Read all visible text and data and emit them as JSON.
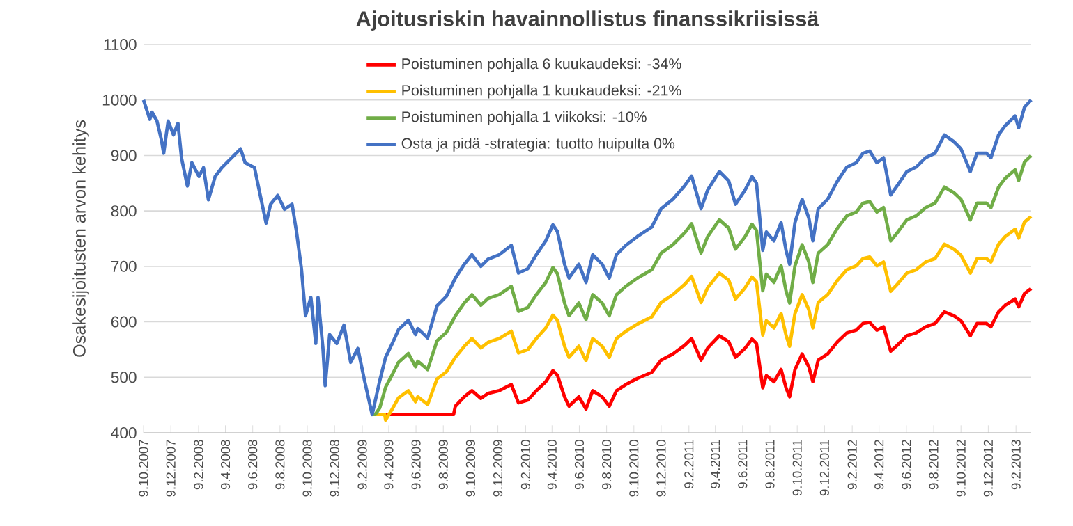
{
  "chart_data": {
    "type": "line",
    "title": "Ajoitusriskin havainnollistus finanssikriisissä",
    "ylabel": "Osakesijoitusten arvon kehitys",
    "xlim": [
      "2007-10-09",
      "2013-03-15"
    ],
    "ylim": [
      400,
      1100
    ],
    "yticks": [
      400,
      500,
      600,
      700,
      800,
      900,
      1000,
      1100
    ],
    "xticks": [
      {
        "value": "2007-10-09",
        "label": "9.10.2007"
      },
      {
        "value": "2007-12-09",
        "label": "9.12.2007"
      },
      {
        "value": "2008-02-09",
        "label": "9.2.2008"
      },
      {
        "value": "2008-04-09",
        "label": "9.4.2008"
      },
      {
        "value": "2008-06-09",
        "label": "9.6.2008"
      },
      {
        "value": "2008-08-09",
        "label": "9.8.2008"
      },
      {
        "value": "2008-10-09",
        "label": "9.10.2008"
      },
      {
        "value": "2008-12-09",
        "label": "9.12.2008"
      },
      {
        "value": "2009-02-09",
        "label": "9.2.2009"
      },
      {
        "value": "2009-04-09",
        "label": "9.4.2009"
      },
      {
        "value": "2009-06-09",
        "label": "9.6.2009"
      },
      {
        "value": "2009-08-09",
        "label": "9.8.2009"
      },
      {
        "value": "2009-10-09",
        "label": "9.10.2009"
      },
      {
        "value": "2009-12-09",
        "label": "9.12.2009"
      },
      {
        "value": "2010-02-09",
        "label": "9.2.2010"
      },
      {
        "value": "2010-04-09",
        "label": "9.4.2010"
      },
      {
        "value": "2010-06-09",
        "label": "9.6.2010"
      },
      {
        "value": "2010-08-09",
        "label": "9.8.2010"
      },
      {
        "value": "2010-10-09",
        "label": "9.10.2010"
      },
      {
        "value": "2010-12-09",
        "label": "9.12.2010"
      },
      {
        "value": "2011-02-09",
        "label": "9.2.2011"
      },
      {
        "value": "2011-04-09",
        "label": "9.4.2011"
      },
      {
        "value": "2011-06-09",
        "label": "9.6.2011"
      },
      {
        "value": "2011-08-09",
        "label": "9.8.2011"
      },
      {
        "value": "2011-10-09",
        "label": "9.10.2011"
      },
      {
        "value": "2011-12-09",
        "label": "9.12.2011"
      },
      {
        "value": "2012-02-09",
        "label": "9.2.2012"
      },
      {
        "value": "2012-04-09",
        "label": "9.4.2012"
      },
      {
        "value": "2012-06-09",
        "label": "9.6.2012"
      },
      {
        "value": "2012-08-09",
        "label": "9.8.2012"
      },
      {
        "value": "2012-10-09",
        "label": "9.10.2012"
      },
      {
        "value": "2012-12-09",
        "label": "9.12.2012"
      },
      {
        "value": "2013-02-09",
        "label": "9.2.2013"
      }
    ],
    "grid": "y",
    "legend": "top",
    "series": [
      {
        "name": "Poistuminen pohjalla 6 kuukaudeksi: -34%",
        "color": "#ff0000",
        "x": [
          "2009-04-02",
          "2009-09-01",
          "2009-09-05",
          "2009-09-25",
          "2009-10-12",
          "2009-11-01",
          "2009-11-17",
          "2009-12-12",
          "2010-01-08",
          "2010-01-24",
          "2010-02-14",
          "2010-03-05",
          "2010-03-26",
          "2010-04-11",
          "2010-04-21",
          "2010-05-07",
          "2010-05-17",
          "2010-06-08",
          "2010-06-24",
          "2010-07-09",
          "2010-07-30",
          "2010-08-15",
          "2010-08-31",
          "2010-09-21",
          "2010-10-17",
          "2010-11-18",
          "2010-12-09",
          "2011-01-04",
          "2011-01-31",
          "2011-02-15",
          "2011-03-08",
          "2011-03-23",
          "2011-04-18",
          "2011-05-09",
          "2011-05-24",
          "2011-06-14",
          "2011-06-30",
          "2011-07-10",
          "2011-07-24",
          "2011-08-01",
          "2011-08-18",
          "2011-09-03",
          "2011-09-14",
          "2011-09-22",
          "2011-10-04",
          "2011-10-20",
          "2011-11-04",
          "2011-11-13",
          "2011-11-25",
          "2011-12-16",
          "2012-01-07",
          "2012-01-28",
          "2012-02-18",
          "2012-03-04",
          "2012-03-19",
          "2012-04-04",
          "2012-04-19",
          "2012-05-05",
          "2012-05-20",
          "2012-06-10",
          "2012-07-01",
          "2012-07-22",
          "2012-08-12",
          "2012-09-02",
          "2012-09-23",
          "2012-10-09",
          "2012-10-30",
          "2012-11-14",
          "2012-12-05",
          "2012-12-15",
          "2013-01-01",
          "2013-01-16",
          "2013-02-07",
          "2013-02-15",
          "2013-02-28",
          "2013-03-15"
        ],
        "values": [
          433,
          433,
          448,
          465,
          476,
          462,
          471,
          476,
          487,
          454,
          459,
          476,
          492,
          512,
          504,
          465,
          448,
          465,
          443,
          476,
          465,
          448,
          476,
          487,
          498,
          509,
          531,
          542,
          558,
          570,
          531,
          553,
          575,
          564,
          536,
          552,
          569,
          561,
          481,
          503,
          492,
          514,
          481,
          465,
          514,
          542,
          519,
          492,
          531,
          542,
          564,
          580,
          585,
          597,
          599,
          585,
          591,
          547,
          558,
          575,
          580,
          591,
          597,
          618,
          611,
          602,
          575,
          597,
          597,
          591,
          618,
          630,
          641,
          627,
          651,
          660
        ]
      },
      {
        "name": "Poistuminen pohjalla 1 kuukaudeksi: -21%",
        "color": "#ffc000",
        "x": [
          "2009-03-03",
          "2009-03-31",
          "2009-04-02",
          "2009-04-17",
          "2009-05-01",
          "2009-05-23",
          "2009-06-08",
          "2009-06-13",
          "2009-07-05",
          "2009-07-26",
          "2009-08-16",
          "2009-09-05",
          "2009-09-25",
          "2009-10-12",
          "2009-11-01",
          "2009-11-17",
          "2009-12-12",
          "2010-01-08",
          "2010-01-24",
          "2010-02-14",
          "2010-03-05",
          "2010-03-26",
          "2010-04-11",
          "2010-04-21",
          "2010-05-07",
          "2010-05-17",
          "2010-06-08",
          "2010-06-24",
          "2010-07-09",
          "2010-07-30",
          "2010-08-15",
          "2010-08-31",
          "2010-09-21",
          "2010-10-17",
          "2010-11-18",
          "2010-12-09",
          "2011-01-04",
          "2011-01-31",
          "2011-02-15",
          "2011-03-08",
          "2011-03-23",
          "2011-04-18",
          "2011-05-09",
          "2011-05-24",
          "2011-06-14",
          "2011-06-30",
          "2011-07-10",
          "2011-07-24",
          "2011-08-01",
          "2011-08-18",
          "2011-09-03",
          "2011-09-14",
          "2011-09-22",
          "2011-10-04",
          "2011-10-20",
          "2011-11-04",
          "2011-11-13",
          "2011-11-25",
          "2011-12-16",
          "2012-01-07",
          "2012-01-28",
          "2012-02-18",
          "2012-03-04",
          "2012-03-19",
          "2012-04-04",
          "2012-04-19",
          "2012-05-05",
          "2012-05-20",
          "2012-06-10",
          "2012-07-01",
          "2012-07-22",
          "2012-08-12",
          "2012-09-02",
          "2012-09-23",
          "2012-10-09",
          "2012-10-30",
          "2012-11-14",
          "2012-12-05",
          "2012-12-15",
          "2013-01-01",
          "2013-01-16",
          "2013-02-07",
          "2013-02-15",
          "2013-02-28",
          "2013-03-15"
        ],
        "values": [
          433,
          433,
          423,
          443,
          463,
          476,
          456,
          465,
          451,
          497,
          510,
          536,
          556,
          570,
          553,
          563,
          570,
          583,
          544,
          550,
          570,
          589,
          612,
          603,
          556,
          536,
          556,
          530,
          570,
          556,
          536,
          570,
          583,
          596,
          609,
          635,
          649,
          668,
          682,
          635,
          662,
          688,
          675,
          641,
          661,
          681,
          672,
          576,
          602,
          589,
          615,
          576,
          556,
          615,
          649,
          622,
          589,
          635,
          649,
          675,
          694,
          701,
          714,
          717,
          701,
          708,
          655,
          668,
          688,
          694,
          708,
          714,
          740,
          731,
          720,
          688,
          714,
          714,
          708,
          740,
          754,
          767,
          751,
          780,
          790
        ]
      },
      {
        "name": "Poistuminen pohjalla 1 viikoksi: -10%",
        "color": "#70ad47",
        "x": [
          "2009-03-03",
          "2009-03-10",
          "2009-03-20",
          "2009-04-02",
          "2009-04-17",
          "2009-05-01",
          "2009-05-23",
          "2009-06-08",
          "2009-06-13",
          "2009-07-05",
          "2009-07-26",
          "2009-08-16",
          "2009-09-05",
          "2009-09-25",
          "2009-10-12",
          "2009-11-01",
          "2009-11-17",
          "2009-12-12",
          "2010-01-08",
          "2010-01-24",
          "2010-02-14",
          "2010-03-05",
          "2010-03-26",
          "2010-04-11",
          "2010-04-21",
          "2010-05-07",
          "2010-05-17",
          "2010-06-08",
          "2010-06-24",
          "2010-07-09",
          "2010-07-30",
          "2010-08-15",
          "2010-08-31",
          "2010-09-21",
          "2010-10-17",
          "2010-11-18",
          "2010-12-09",
          "2011-01-04",
          "2011-01-31",
          "2011-02-15",
          "2011-03-08",
          "2011-03-23",
          "2011-04-18",
          "2011-05-09",
          "2011-05-24",
          "2011-06-14",
          "2011-06-30",
          "2011-07-10",
          "2011-07-24",
          "2011-08-01",
          "2011-08-18",
          "2011-09-03",
          "2011-09-14",
          "2011-09-22",
          "2011-10-04",
          "2011-10-20",
          "2011-11-04",
          "2011-11-13",
          "2011-11-25",
          "2011-12-16",
          "2012-01-07",
          "2012-01-28",
          "2012-02-18",
          "2012-03-04",
          "2012-03-19",
          "2012-04-04",
          "2012-04-19",
          "2012-05-05",
          "2012-05-20",
          "2012-06-10",
          "2012-07-01",
          "2012-07-22",
          "2012-08-12",
          "2012-09-02",
          "2012-09-23",
          "2012-10-09",
          "2012-10-30",
          "2012-11-14",
          "2012-12-05",
          "2012-12-15",
          "2013-01-01",
          "2013-01-16",
          "2013-02-07",
          "2013-02-15",
          "2013-02-28",
          "2013-03-15"
        ],
        "values": [
          433,
          433,
          445,
          482,
          505,
          527,
          543,
          519,
          529,
          514,
          566,
          581,
          611,
          634,
          649,
          630,
          642,
          649,
          664,
          619,
          626,
          649,
          671,
          698,
          687,
          634,
          611,
          634,
          604,
          649,
          634,
          611,
          649,
          664,
          679,
          694,
          724,
          739,
          761,
          777,
          724,
          754,
          784,
          769,
          731,
          753,
          776,
          765,
          656,
          686,
          671,
          701,
          656,
          634,
          701,
          739,
          708,
          671,
          724,
          739,
          769,
          791,
          798,
          814,
          817,
          798,
          806,
          746,
          761,
          784,
          791,
          806,
          814,
          843,
          833,
          821,
          784,
          814,
          814,
          806,
          843,
          859,
          874,
          855,
          888,
          900
        ]
      },
      {
        "name": "Osta ja pidä -strategia: tuotto huipulta 0%",
        "color": "#4472c4",
        "x": [
          "2007-10-09",
          "2007-10-23",
          "2007-10-28",
          "2007-11-08",
          "2007-11-18",
          "2007-11-23",
          "2007-12-03",
          "2007-12-15",
          "2007-12-25",
          "2008-01-02",
          "2008-01-15",
          "2008-01-25",
          "2008-02-10",
          "2008-02-20",
          "2008-03-02",
          "2008-03-17",
          "2008-04-01",
          "2008-04-22",
          "2008-05-13",
          "2008-05-23",
          "2008-06-13",
          "2008-06-28",
          "2008-07-09",
          "2008-07-19",
          "2008-08-04",
          "2008-08-19",
          "2008-09-05",
          "2008-09-15",
          "2008-09-26",
          "2008-10-05",
          "2008-10-17",
          "2008-10-28",
          "2008-11-02",
          "2008-11-13",
          "2008-11-18",
          "2008-11-28",
          "2008-12-14",
          "2008-12-30",
          "2009-01-14",
          "2009-01-30",
          "2009-02-14",
          "2009-03-03",
          "2009-03-20",
          "2009-04-02",
          "2009-04-17",
          "2009-05-01",
          "2009-05-23",
          "2009-06-08",
          "2009-06-13",
          "2009-07-05",
          "2009-07-26",
          "2009-08-16",
          "2009-09-05",
          "2009-09-25",
          "2009-10-12",
          "2009-11-01",
          "2009-11-17",
          "2009-12-12",
          "2010-01-08",
          "2010-01-24",
          "2010-02-14",
          "2010-03-05",
          "2010-03-26",
          "2010-04-11",
          "2010-04-21",
          "2010-05-07",
          "2010-05-17",
          "2010-06-08",
          "2010-06-24",
          "2010-07-09",
          "2010-07-30",
          "2010-08-15",
          "2010-08-31",
          "2010-09-21",
          "2010-10-17",
          "2010-11-18",
          "2010-12-09",
          "2011-01-04",
          "2011-01-31",
          "2011-02-15",
          "2011-03-08",
          "2011-03-23",
          "2011-04-18",
          "2011-05-09",
          "2011-05-24",
          "2011-06-14",
          "2011-06-30",
          "2011-07-10",
          "2011-07-24",
          "2011-08-01",
          "2011-08-18",
          "2011-09-03",
          "2011-09-14",
          "2011-09-22",
          "2011-10-04",
          "2011-10-20",
          "2011-11-04",
          "2011-11-13",
          "2011-11-25",
          "2011-12-16",
          "2012-01-07",
          "2012-01-28",
          "2012-02-18",
          "2012-03-04",
          "2012-03-19",
          "2012-04-04",
          "2012-04-19",
          "2012-05-05",
          "2012-05-20",
          "2012-06-10",
          "2012-07-01",
          "2012-07-22",
          "2012-08-12",
          "2012-09-02",
          "2012-09-23",
          "2012-10-09",
          "2012-10-30",
          "2012-11-14",
          "2012-12-05",
          "2012-12-15",
          "2013-01-01",
          "2013-01-16",
          "2013-02-07",
          "2013-02-15",
          "2013-02-28",
          "2013-03-15"
        ],
        "values": [
          1000,
          965,
          978,
          962,
          928,
          904,
          962,
          937,
          958,
          895,
          845,
          887,
          862,
          878,
          820,
          862,
          878,
          895,
          912,
          887,
          878,
          820,
          778,
          812,
          828,
          803,
          812,
          762,
          695,
          611,
          644,
          561,
          644,
          552,
          485,
          577,
          561,
          594,
          527,
          552,
          494,
          433,
          494,
          536,
          561,
          586,
          603,
          577,
          588,
          571,
          629,
          646,
          679,
          704,
          721,
          700,
          713,
          721,
          738,
          688,
          696,
          721,
          746,
          775,
          763,
          704,
          679,
          704,
          671,
          721,
          704,
          679,
          721,
          738,
          754,
          771,
          804,
          821,
          846,
          863,
          804,
          838,
          871,
          854,
          812,
          837,
          862,
          850,
          729,
          762,
          746,
          779,
          729,
          704,
          779,
          821,
          787,
          746,
          804,
          821,
          854,
          879,
          887,
          904,
          908,
          887,
          896,
          829,
          846,
          871,
          879,
          896,
          904,
          937,
          925,
          912,
          871,
          904,
          904,
          896,
          937,
          954,
          971,
          950,
          987,
          1000
        ]
      }
    ]
  }
}
